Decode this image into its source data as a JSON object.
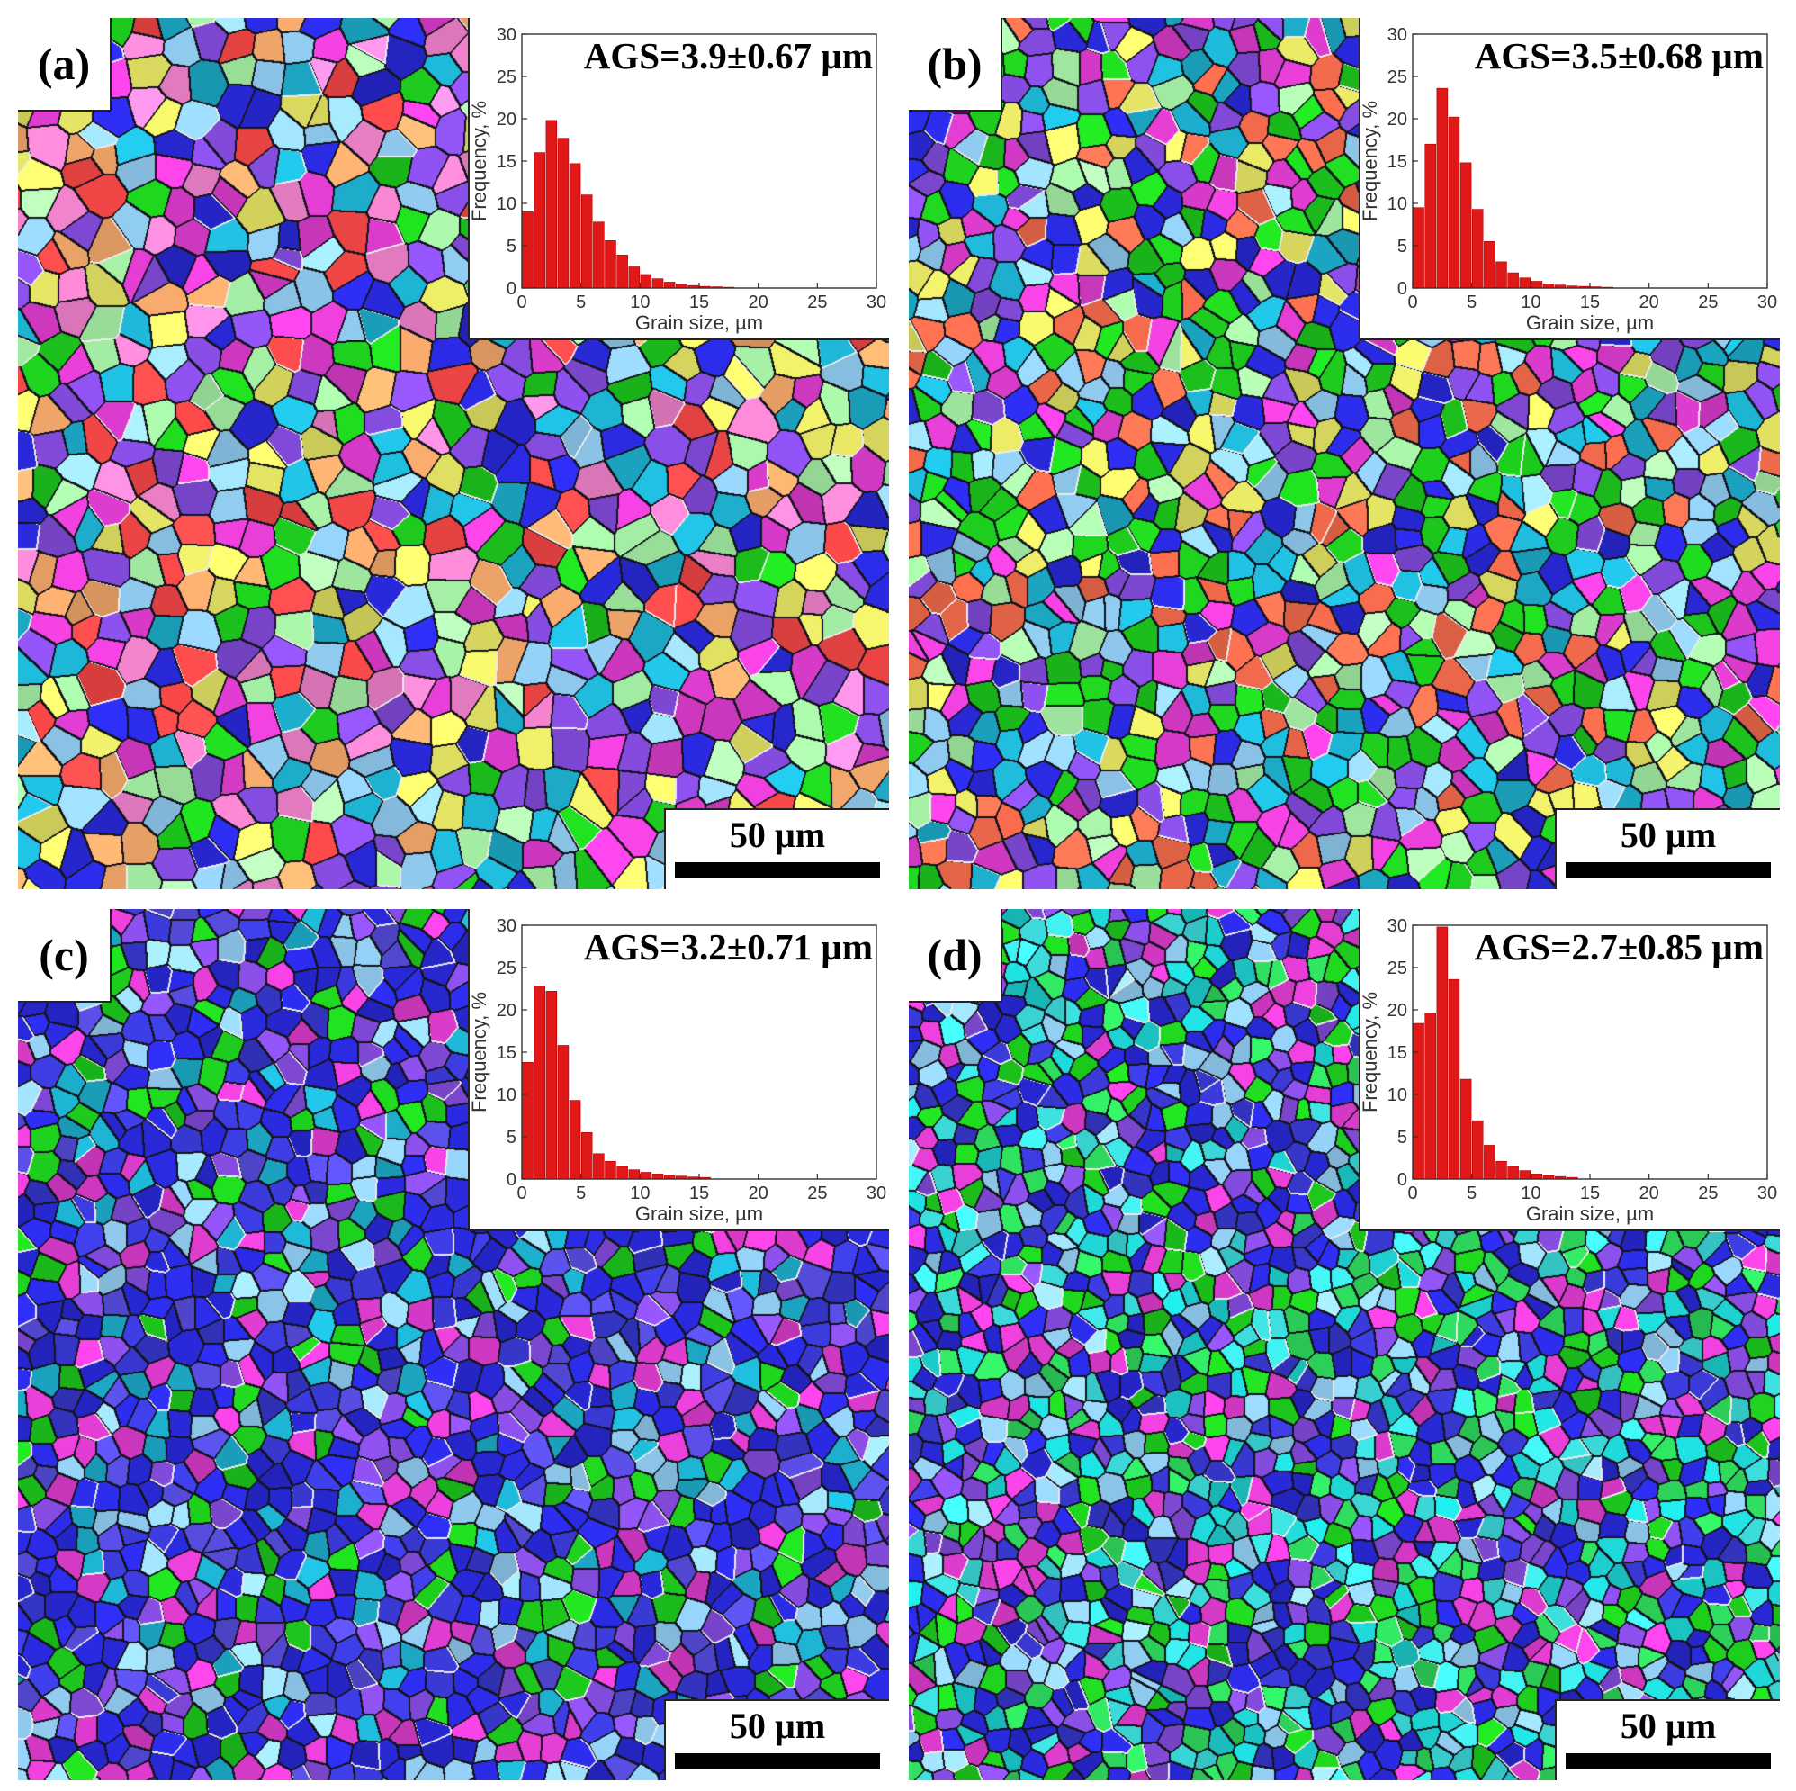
{
  "figure": {
    "panels": [
      {
        "label": "(a)",
        "ags": "AGS=3.9±0.67 µm",
        "scale": "50 µm",
        "palette": [
          "#1fd41f",
          "#2a2ae0",
          "#8a4fe8",
          "#1fb8d8",
          "#e83fd8",
          "#f0f06a",
          "#ffb070",
          "#ff4a4a",
          "#9ad8ff",
          "#b0ffb0",
          "#ff8ad8"
        ],
        "chart_data": {
          "type": "bar",
          "xlabel": "Grain size, µm",
          "ylabel": "Frequency, %",
          "xlim": [
            0,
            30
          ],
          "ylim": [
            0,
            30
          ],
          "xticks": [
            "0",
            "5",
            "10",
            "15",
            "20",
            "25",
            "30"
          ],
          "yticks": [
            "0",
            "5",
            "10",
            "15",
            "20",
            "25",
            "30"
          ],
          "bin_width": 1,
          "x": [
            0,
            1,
            2,
            3,
            4,
            5,
            6,
            7,
            8,
            9,
            10,
            11,
            12,
            13,
            14,
            15,
            16,
            17
          ],
          "values": [
            9,
            16,
            19.8,
            17.7,
            14.7,
            11,
            7.8,
            5.6,
            3.9,
            2.5,
            1.6,
            1.1,
            0.7,
            0.5,
            0.3,
            0.2,
            0.15,
            0.1
          ],
          "color": "#e01818"
        }
      },
      {
        "label": "(b)",
        "ags": "AGS=3.5±0.68 µm",
        "scale": "50 µm",
        "palette": [
          "#1fd41f",
          "#2a2ae0",
          "#1fb8d8",
          "#8a4fe8",
          "#1fd41f",
          "#e83fd8",
          "#f0f06a",
          "#ff7050",
          "#9ad8ff",
          "#b0ffb0"
        ],
        "chart_data": {
          "type": "bar",
          "xlabel": "Grain size, µm",
          "ylabel": "Frequency, %",
          "xlim": [
            0,
            30
          ],
          "ylim": [
            0,
            30
          ],
          "xticks": [
            "0",
            "5",
            "10",
            "15",
            "20",
            "25",
            "30"
          ],
          "yticks": [
            "0",
            "5",
            "10",
            "15",
            "20",
            "25",
            "30"
          ],
          "bin_width": 1,
          "x": [
            0,
            1,
            2,
            3,
            4,
            5,
            6,
            7,
            8,
            9,
            10,
            11,
            12,
            13,
            14,
            15,
            16
          ],
          "values": [
            9.5,
            17,
            23.6,
            20.2,
            14.8,
            9.3,
            5.5,
            3.1,
            1.8,
            1.2,
            0.8,
            0.5,
            0.35,
            0.25,
            0.2,
            0.15,
            0.1
          ],
          "color": "#e01818"
        }
      },
      {
        "label": "(c)",
        "ags": "AGS=3.2±0.71 µm",
        "scale": "50 µm",
        "palette": [
          "#2a2ae0",
          "#2a2ae0",
          "#3a3ad8",
          "#5a50e8",
          "#8a4fe8",
          "#1fb8d8",
          "#1fd41f",
          "#e83fd8",
          "#2a2ae0",
          "#9ad8ff"
        ],
        "chart_data": {
          "type": "bar",
          "xlabel": "Grain size, µm",
          "ylabel": "Frequency, %",
          "xlim": [
            0,
            30
          ],
          "ylim": [
            0,
            30
          ],
          "xticks": [
            "0",
            "5",
            "10",
            "15",
            "20",
            "25",
            "30"
          ],
          "yticks": [
            "0",
            "5",
            "10",
            "15",
            "20",
            "25",
            "30"
          ],
          "bin_width": 1,
          "x": [
            0,
            1,
            2,
            3,
            4,
            5,
            6,
            7,
            8,
            9,
            10,
            11,
            12,
            13,
            14,
            15
          ],
          "values": [
            13.8,
            22.8,
            22.2,
            15.8,
            9.3,
            5.5,
            3,
            2.1,
            1.5,
            1.1,
            0.8,
            0.6,
            0.45,
            0.35,
            0.25,
            0.2
          ],
          "color": "#e01818"
        }
      },
      {
        "label": "(d)",
        "ags": "AGS=2.7±0.85 µm",
        "scale": "50 µm",
        "palette": [
          "#2a2ae0",
          "#1fd41f",
          "#1fd8d8",
          "#3a3ad8",
          "#40e8e8",
          "#8a4fe8",
          "#30e060",
          "#e83fd8",
          "#9ad8ff",
          "#2a2ae0"
        ],
        "chart_data": {
          "type": "bar",
          "xlabel": "Grain size, µm",
          "ylabel": "Frequency, %",
          "xlim": [
            0,
            30
          ],
          "ylim": [
            0,
            30
          ],
          "xticks": [
            "0",
            "5",
            "10",
            "15",
            "20",
            "25",
            "30"
          ],
          "yticks": [
            "0",
            "5",
            "10",
            "15",
            "20",
            "25",
            "30"
          ],
          "bin_width": 1,
          "x": [
            0,
            1,
            2,
            3,
            4,
            5,
            6,
            7,
            8,
            9,
            10,
            11,
            12,
            13
          ],
          "values": [
            18.4,
            19.6,
            29.8,
            23.6,
            11.8,
            6.9,
            4,
            2.1,
            1.5,
            1,
            0.6,
            0.4,
            0.3,
            0.2
          ],
          "color": "#e01818"
        }
      }
    ]
  }
}
